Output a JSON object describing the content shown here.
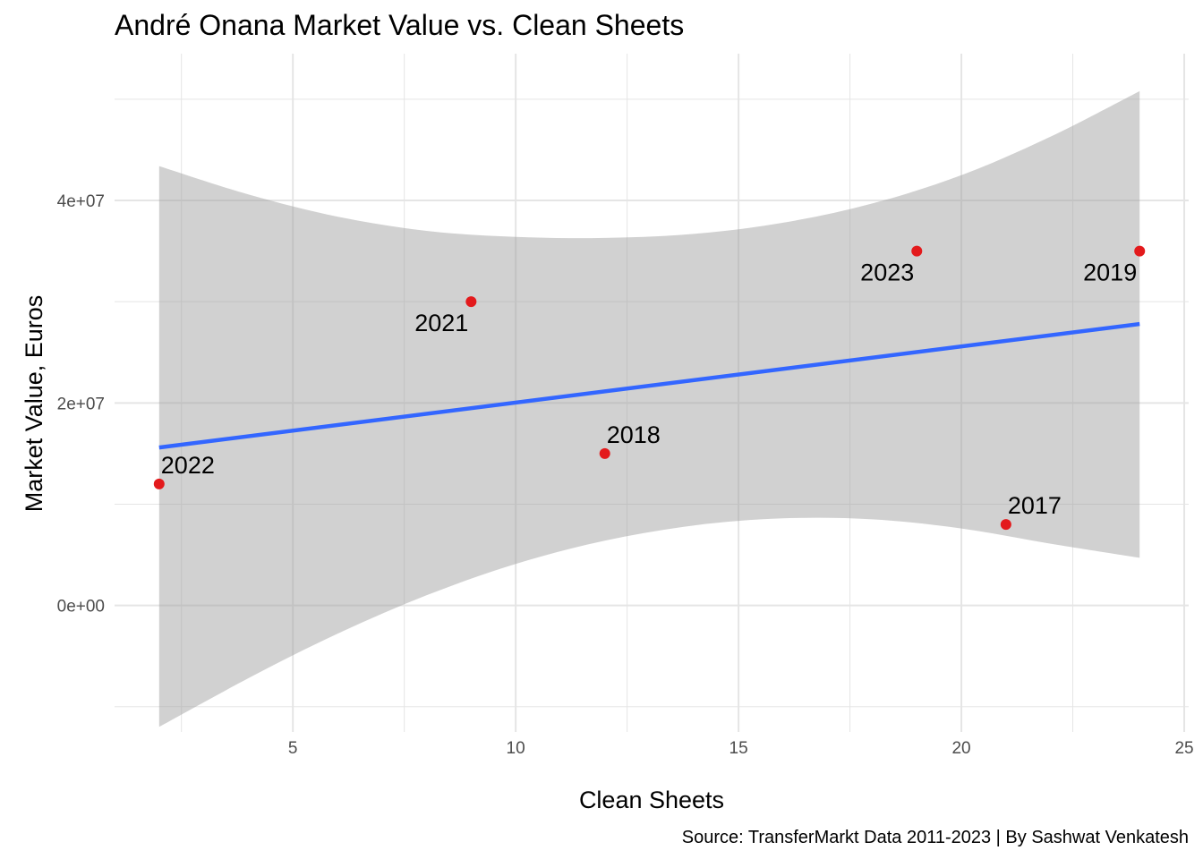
{
  "chart_data": {
    "type": "scatter",
    "title": "André Onana Market Value vs. Clean Sheets",
    "xlabel": "Clean Sheets",
    "ylabel": "Market Value, Euros",
    "caption": "Source: TransferMarkt Data 2011-2023 | By Sashwat Venkatesh",
    "xlim": [
      1.0,
      25.1
    ],
    "ylim": [
      -12500000,
      54500000
    ],
    "x_ticks": [
      5,
      10,
      15,
      20,
      25
    ],
    "x_tick_labels": [
      "5",
      "10",
      "15",
      "20",
      "25"
    ],
    "y_ticks": [
      0,
      20000000,
      40000000
    ],
    "y_tick_labels": [
      "0e+00",
      "2e+07",
      "4e+07"
    ],
    "grid": true,
    "points": [
      {
        "label": "2022",
        "x": 2,
        "y": 12000000
      },
      {
        "label": "2021",
        "x": 9,
        "y": 30000000
      },
      {
        "label": "2018",
        "x": 12,
        "y": 15000000
      },
      {
        "label": "2023",
        "x": 19,
        "y": 35000000
      },
      {
        "label": "2017",
        "x": 21,
        "y": 8000000
      },
      {
        "label": "2019",
        "x": 24,
        "y": 35000000
      }
    ],
    "trend_line": {
      "x": [
        2,
        24
      ],
      "y": [
        15600000,
        27800000
      ]
    },
    "confidence_band": {
      "x": [
        2,
        4,
        6,
        8,
        10,
        12,
        14,
        16,
        18,
        20,
        22,
        24
      ],
      "upper": [
        43400000,
        40600000,
        38400000,
        37000000,
        36400000,
        36300000,
        36700000,
        37800000,
        39700000,
        42500000,
        46300000,
        50800000
      ],
      "lower": [
        -12000000,
        -7200000,
        -2800000,
        1000000,
        4100000,
        6400000,
        7900000,
        8600000,
        8500000,
        7600000,
        6100000,
        4700000
      ]
    },
    "colors": {
      "point": "#e31a1c",
      "line": "#3366ff",
      "band": "#c8c8c8",
      "grid": "#e5e5e5"
    }
  }
}
